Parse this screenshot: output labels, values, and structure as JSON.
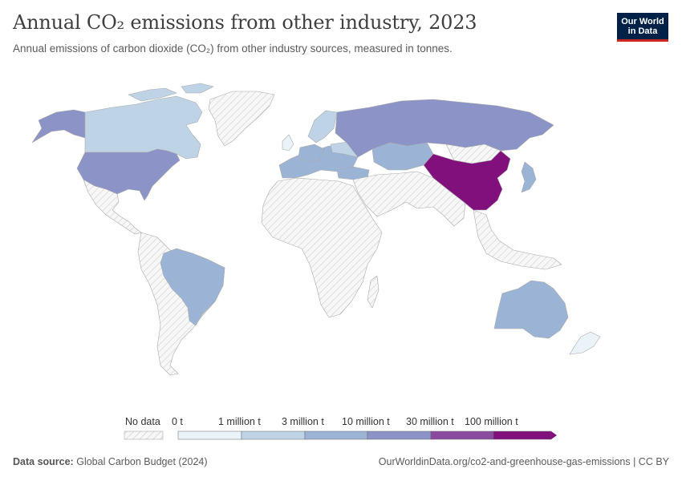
{
  "header": {
    "title": "Annual CO₂ emissions from other industry, 2023",
    "subtitle": "Annual emissions of carbon dioxide (CO₂) from other industry sources, measured in tonnes."
  },
  "logo": {
    "line1": "Our World",
    "line2": "in Data"
  },
  "legend": {
    "no_data_label": "No data",
    "bins": [
      "0 t",
      "1 million t",
      "3 million t",
      "10 million t",
      "30 million t",
      "100 million t"
    ],
    "colors": [
      "#e9f3f8",
      "#bfd3e6",
      "#9bb4d6",
      "#8c93c6",
      "#8a4a9f",
      "#810f7c"
    ]
  },
  "map_data": {
    "type": "choropleth",
    "variable": "Annual CO₂ emissions from other industry",
    "unit": "t",
    "year": 2023,
    "regions": [
      {
        "name": "China",
        "bin": 5,
        "color": "#810f7c"
      },
      {
        "name": "United States",
        "bin": 3,
        "color": "#8c93c6"
      },
      {
        "name": "Russia",
        "bin": 3,
        "color": "#8c93c6"
      },
      {
        "name": "Canada",
        "bin": 1,
        "color": "#bfd3e6"
      },
      {
        "name": "Brazil",
        "bin": 2,
        "color": "#9bb4d6"
      },
      {
        "name": "Australia",
        "bin": 2,
        "color": "#9bb4d6"
      },
      {
        "name": "Kazakhstan",
        "bin": 2,
        "color": "#9bb4d6"
      },
      {
        "name": "Japan",
        "bin": 2,
        "color": "#9bb4d6"
      },
      {
        "name": "Turkey",
        "bin": 2,
        "color": "#9bb4d6"
      },
      {
        "name": "Germany",
        "bin": 2,
        "color": "#9bb4d6"
      },
      {
        "name": "Ukraine",
        "bin": 1,
        "color": "#bfd3e6"
      },
      {
        "name": "New Zealand",
        "bin": 0,
        "color": "#e9f3f8"
      },
      {
        "name": "Mongolia",
        "bin": null,
        "color": "no-data"
      }
    ]
  },
  "footer": {
    "source_label": "Data source:",
    "source_value": "Global Carbon Budget (2024)",
    "url": "OurWorldinData.org/co2-and-greenhouse-gas-emissions | CC BY"
  }
}
